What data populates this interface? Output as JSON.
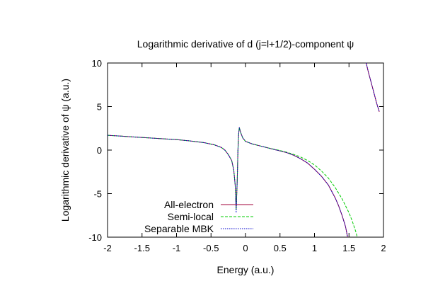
{
  "chart_data": {
    "type": "line",
    "title": "Logarithmic derivative of d (j=l+1/2)-component ψ",
    "xlabel": "Energy (a.u.)",
    "ylabel": "Logarithmic derivative of ψ (a.u.)",
    "xlim": [
      -2,
      2
    ],
    "ylim": [
      -10,
      10
    ],
    "x_ticks": [
      -2,
      -1.5,
      -1,
      -0.5,
      0,
      0.5,
      1,
      1.5,
      2
    ],
    "x_tick_labels": [
      "-2",
      "-1.5",
      "-1",
      "-0.5",
      "0",
      "0.5",
      "1",
      "1.5",
      "2"
    ],
    "y_ticks": [
      -10,
      -5,
      0,
      5,
      10
    ],
    "y_tick_labels": [
      "-10",
      "-5",
      "0",
      "5",
      "10"
    ],
    "grid": false,
    "legend_position": "bottom-left",
    "series": [
      {
        "name": "All-electron",
        "color": "#a0003a",
        "dash": "solid",
        "points": [
          [
            -2.0,
            1.7
          ],
          [
            -1.8,
            1.6
          ],
          [
            -1.6,
            1.5
          ],
          [
            -1.4,
            1.4
          ],
          [
            -1.2,
            1.3
          ],
          [
            -1.0,
            1.2
          ],
          [
            -0.8,
            1.05
          ],
          [
            -0.6,
            0.85
          ],
          [
            -0.45,
            0.6
          ],
          [
            -0.35,
            0.3
          ],
          [
            -0.3,
            0.0
          ],
          [
            -0.25,
            -0.5
          ],
          [
            -0.2,
            -1.2
          ],
          [
            -0.17,
            -2.3
          ],
          [
            -0.15,
            -4.0
          ],
          [
            -0.135,
            -6.8
          ],
          [
            -0.12,
            -3.5
          ],
          [
            -0.11,
            0.0
          ],
          [
            -0.1,
            1.8
          ],
          [
            -0.09,
            2.6
          ],
          [
            -0.07,
            2.0
          ],
          [
            -0.04,
            1.4
          ],
          [
            0.0,
            1.0
          ],
          [
            0.1,
            0.7
          ],
          [
            0.2,
            0.5
          ],
          [
            0.3,
            0.3
          ],
          [
            0.4,
            0.1
          ],
          [
            0.5,
            -0.1
          ],
          [
            0.6,
            -0.3
          ],
          [
            0.7,
            -0.6
          ],
          [
            0.8,
            -1.0
          ],
          [
            0.9,
            -1.5
          ],
          [
            1.0,
            -2.2
          ],
          [
            1.1,
            -3.0
          ],
          [
            1.2,
            -4.0
          ],
          [
            1.3,
            -5.5
          ],
          [
            1.35,
            -6.4
          ],
          [
            1.4,
            -7.5
          ],
          [
            1.45,
            -8.8
          ],
          [
            1.48,
            -10.0
          ]
        ],
        "segment2": [
          [
            1.75,
            10.0
          ],
          [
            1.78,
            9.0
          ],
          [
            1.82,
            7.8
          ],
          [
            1.86,
            6.6
          ],
          [
            1.9,
            5.4
          ],
          [
            1.94,
            4.4
          ]
        ]
      },
      {
        "name": "Semi-local",
        "color": "#00cc00",
        "dash": "dashed",
        "points": [
          [
            -2.0,
            1.7
          ],
          [
            -1.8,
            1.6
          ],
          [
            -1.6,
            1.5
          ],
          [
            -1.4,
            1.4
          ],
          [
            -1.2,
            1.3
          ],
          [
            -1.0,
            1.2
          ],
          [
            -0.8,
            1.05
          ],
          [
            -0.6,
            0.85
          ],
          [
            -0.45,
            0.6
          ],
          [
            -0.35,
            0.3
          ],
          [
            -0.3,
            0.0
          ],
          [
            -0.25,
            -0.5
          ],
          [
            -0.2,
            -1.2
          ],
          [
            -0.17,
            -2.3
          ],
          [
            -0.15,
            -4.0
          ],
          [
            -0.135,
            -6.8
          ],
          [
            -0.12,
            -3.5
          ],
          [
            -0.11,
            0.0
          ],
          [
            -0.1,
            1.8
          ],
          [
            -0.09,
            2.6
          ],
          [
            -0.07,
            2.0
          ],
          [
            -0.04,
            1.4
          ],
          [
            0.0,
            1.0
          ],
          [
            0.1,
            0.7
          ],
          [
            0.2,
            0.5
          ],
          [
            0.3,
            0.3
          ],
          [
            0.4,
            0.12
          ],
          [
            0.5,
            -0.05
          ],
          [
            0.6,
            -0.25
          ],
          [
            0.7,
            -0.5
          ],
          [
            0.8,
            -0.8
          ],
          [
            0.9,
            -1.2
          ],
          [
            1.0,
            -1.7
          ],
          [
            1.1,
            -2.4
          ],
          [
            1.2,
            -3.2
          ],
          [
            1.3,
            -4.3
          ],
          [
            1.4,
            -5.6
          ],
          [
            1.5,
            -7.2
          ],
          [
            1.55,
            -8.2
          ],
          [
            1.6,
            -9.4
          ],
          [
            1.62,
            -10.0
          ]
        ]
      },
      {
        "name": "Separable MBK",
        "color": "#0000cc",
        "dash": "dotted",
        "points": [
          [
            -2.0,
            1.7
          ],
          [
            -1.8,
            1.6
          ],
          [
            -1.6,
            1.5
          ],
          [
            -1.4,
            1.4
          ],
          [
            -1.2,
            1.3
          ],
          [
            -1.0,
            1.2
          ],
          [
            -0.8,
            1.05
          ],
          [
            -0.6,
            0.85
          ],
          [
            -0.45,
            0.6
          ],
          [
            -0.35,
            0.3
          ],
          [
            -0.3,
            0.0
          ],
          [
            -0.25,
            -0.5
          ],
          [
            -0.2,
            -1.2
          ],
          [
            -0.17,
            -2.3
          ],
          [
            -0.15,
            -4.0
          ],
          [
            -0.135,
            -7.2
          ],
          [
            -0.12,
            -3.5
          ],
          [
            -0.11,
            0.0
          ],
          [
            -0.1,
            1.8
          ],
          [
            -0.09,
            2.6
          ],
          [
            -0.07,
            2.0
          ],
          [
            -0.04,
            1.4
          ],
          [
            0.0,
            1.0
          ],
          [
            0.1,
            0.7
          ],
          [
            0.2,
            0.5
          ],
          [
            0.3,
            0.3
          ],
          [
            0.4,
            0.1
          ],
          [
            0.5,
            -0.1
          ],
          [
            0.6,
            -0.3
          ],
          [
            0.7,
            -0.6
          ],
          [
            0.8,
            -1.0
          ],
          [
            0.9,
            -1.5
          ],
          [
            1.0,
            -2.2
          ],
          [
            1.1,
            -3.0
          ],
          [
            1.2,
            -4.0
          ],
          [
            1.3,
            -5.5
          ],
          [
            1.35,
            -6.4
          ],
          [
            1.4,
            -7.5
          ],
          [
            1.45,
            -8.8
          ],
          [
            1.48,
            -10.0
          ]
        ],
        "segment2": [
          [
            1.75,
            10.0
          ],
          [
            1.78,
            9.0
          ],
          [
            1.82,
            7.8
          ],
          [
            1.86,
            6.6
          ],
          [
            1.9,
            5.4
          ],
          [
            1.94,
            4.4
          ]
        ]
      }
    ]
  }
}
